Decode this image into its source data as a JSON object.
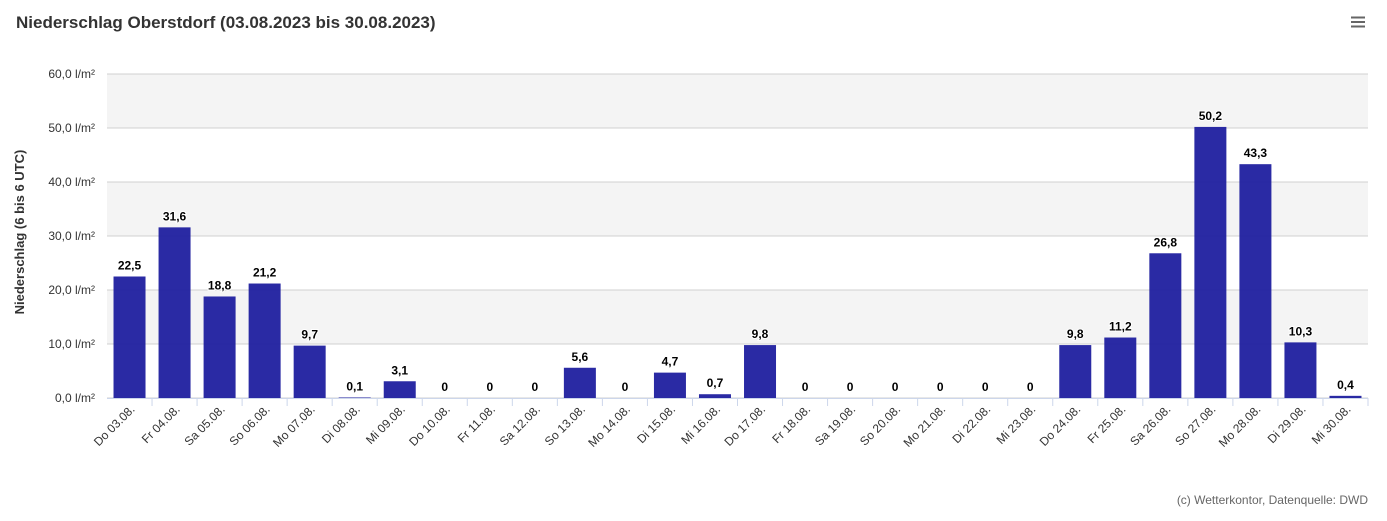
{
  "chart_data": {
    "type": "bar",
    "title": "Niederschlag Oberstdorf (03.08.2023 bis 30.08.2023)",
    "y_axis_label": "Niederschlag (6 bis 6 UTC)",
    "credits": "(c) Wetterkontor, Datenquelle: DWD",
    "categories": [
      "Do 03.08.",
      "Fr 04.08.",
      "Sa 05.08.",
      "So 06.08.",
      "Mo 07.08.",
      "Di 08.08.",
      "Mi 09.08.",
      "Do 10.08.",
      "Fr 11.08.",
      "Sa 12.08.",
      "So 13.08.",
      "Mo 14.08.",
      "Di 15.08.",
      "Mi 16.08.",
      "Do 17.08.",
      "Fr 18.08.",
      "Sa 19.08.",
      "So 20.08.",
      "Mo 21.08.",
      "Di 22.08.",
      "Mi 23.08.",
      "Do 24.08.",
      "Fr 25.08.",
      "Sa 26.08.",
      "So 27.08.",
      "Mo 28.08.",
      "Di 29.08.",
      "Mi 30.08."
    ],
    "values": [
      22.5,
      31.6,
      18.8,
      21.2,
      9.7,
      0.1,
      3.1,
      0,
      0,
      0,
      5.6,
      0,
      4.7,
      0.7,
      9.8,
      0,
      0,
      0,
      0,
      0,
      0,
      9.8,
      11.2,
      26.8,
      50.2,
      43.3,
      10.3,
      0.4
    ],
    "value_labels": [
      "22,5",
      "31,6",
      "18,8",
      "21,2",
      "9,7",
      "0,1",
      "3,1",
      "0",
      "0",
      "0",
      "5,6",
      "0",
      "4,7",
      "0,7",
      "9,8",
      "0",
      "0",
      "0",
      "0",
      "0",
      "0",
      "9,8",
      "11,2",
      "26,8",
      "50,2",
      "43,3",
      "10,3",
      "0,4"
    ],
    "color": "#1f1f9f",
    "ylim": [
      0,
      60
    ],
    "yticks": [
      {
        "value": 0,
        "label": "0,0 l/m²"
      },
      {
        "value": 10,
        "label": "10,0 l/m²"
      },
      {
        "value": 20,
        "label": "20,0 l/m²"
      },
      {
        "value": 30,
        "label": "30,0 l/m²"
      },
      {
        "value": 40,
        "label": "40,0 l/m²"
      },
      {
        "value": 50,
        "label": "50,0 l/m²"
      },
      {
        "value": 60,
        "label": "60,0 l/m²"
      }
    ],
    "grid": true
  }
}
